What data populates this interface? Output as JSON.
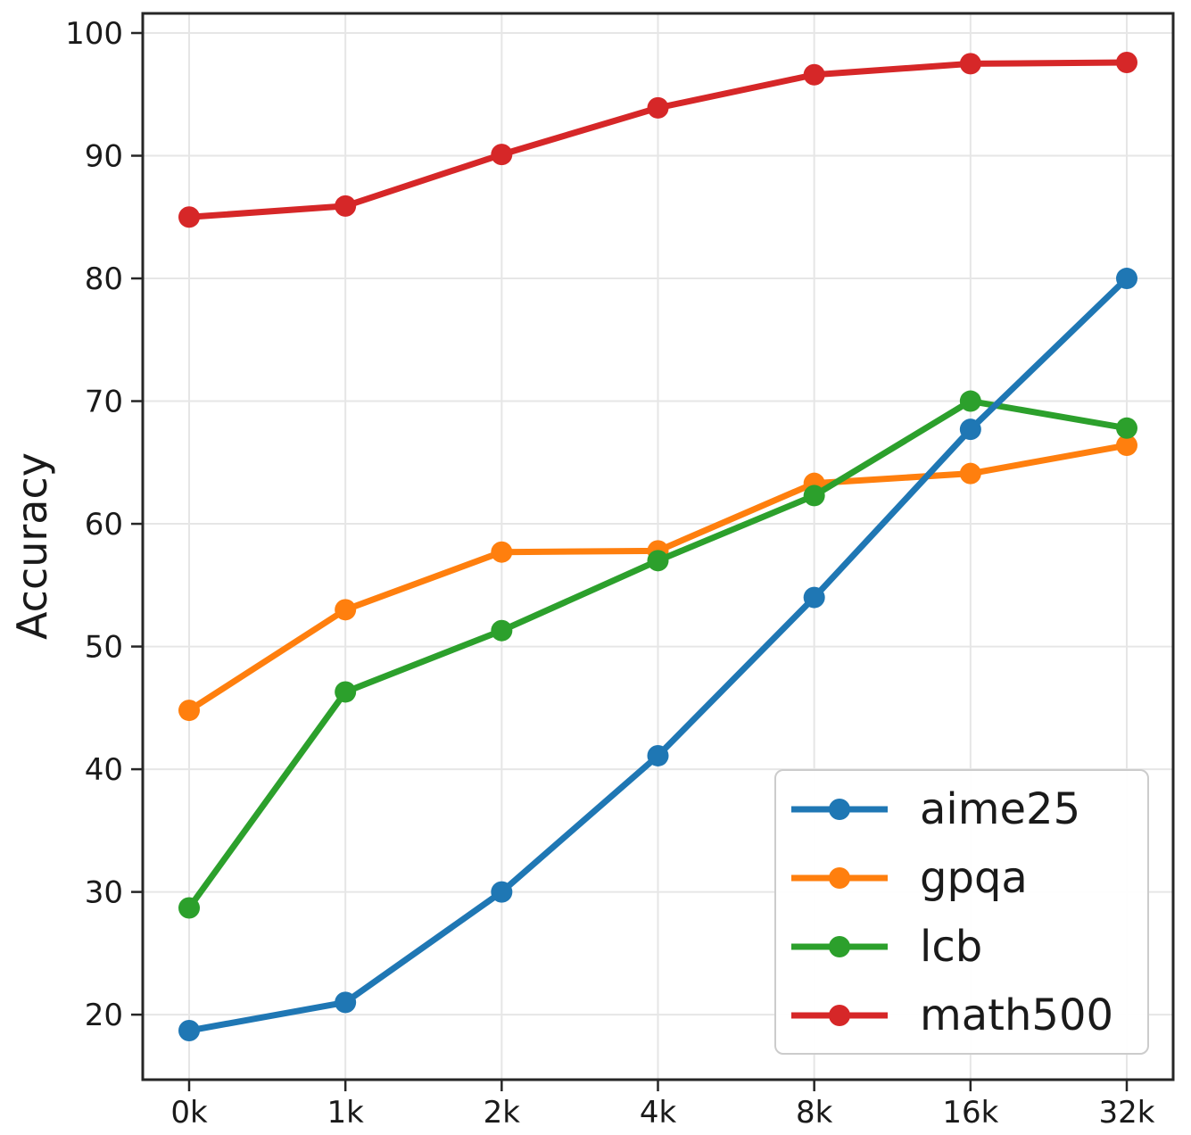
{
  "chart_data": {
    "type": "line",
    "title": "",
    "xlabel": "",
    "ylabel": "Accuracy",
    "categories": [
      "0k",
      "1k",
      "2k",
      "4k",
      "8k",
      "16k",
      "32k"
    ],
    "series": [
      {
        "name": "aime25",
        "color": "#1f77b4",
        "values": [
          18.7,
          21.0,
          30.0,
          41.1,
          54.0,
          67.7,
          80.0
        ]
      },
      {
        "name": "gpqa",
        "color": "#ff7f0e",
        "values": [
          44.8,
          53.0,
          57.7,
          57.8,
          63.3,
          64.1,
          66.4
        ]
      },
      {
        "name": "lcb",
        "color": "#2ca02c",
        "values": [
          28.7,
          46.3,
          51.3,
          57.0,
          62.3,
          70.0,
          67.8
        ]
      },
      {
        "name": "math500",
        "color": "#d62728",
        "values": [
          85.0,
          85.9,
          90.1,
          93.9,
          96.6,
          97.5,
          97.6
        ]
      }
    ],
    "y_ticks": [
      20,
      30,
      40,
      50,
      60,
      70,
      80,
      90,
      100
    ],
    "ylim": [
      14.7,
      101.6
    ],
    "grid": true,
    "legend_position": "lower right",
    "marker": "circle"
  },
  "colors": {
    "grid": "#e6e6e6",
    "spine": "#262626",
    "tick_label": "#1a1a1a",
    "background": "#ffffff"
  }
}
